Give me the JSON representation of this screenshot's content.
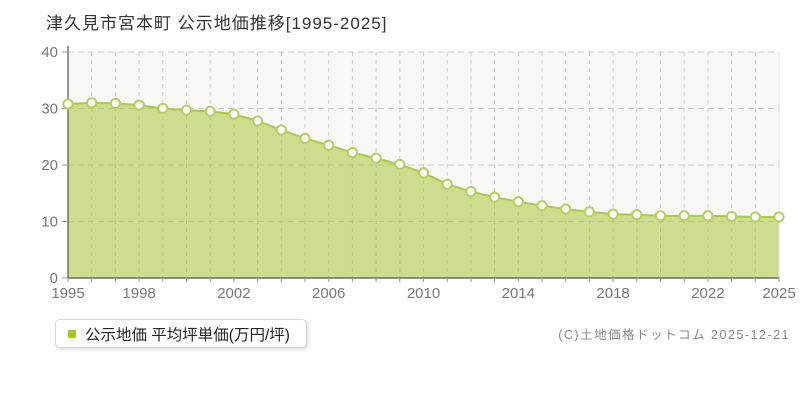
{
  "title": "津久見市宮本町 公示地価推移[1995-2025]",
  "legend": {
    "label": "公示地価 平均坪単価(万円/坪)",
    "marker_color": "#a3c71d"
  },
  "copyright": "(C)土地価格ドットコム 2025-12-21",
  "chart_data": {
    "type": "area",
    "title": "津久見市宮本町 公示地価推移[1995-2025]",
    "xlabel": "",
    "ylabel": "公示地価 平均坪単価(万円/坪)",
    "x": [
      1995,
      1996,
      1997,
      1998,
      1999,
      2000,
      2001,
      2002,
      2003,
      2004,
      2005,
      2006,
      2007,
      2008,
      2009,
      2010,
      2011,
      2012,
      2013,
      2014,
      2015,
      2016,
      2017,
      2018,
      2019,
      2020,
      2021,
      2022,
      2023,
      2024,
      2025
    ],
    "series": [
      {
        "name": "公示地価 平均坪単価(万円/坪)",
        "values": [
          30.8,
          31.0,
          30.9,
          30.6,
          30.0,
          29.7,
          29.5,
          29.0,
          27.8,
          26.2,
          24.7,
          23.5,
          22.2,
          21.2,
          20.1,
          18.6,
          16.6,
          15.3,
          14.3,
          13.5,
          12.8,
          12.2,
          11.7,
          11.3,
          11.2,
          11.0,
          11.0,
          11.0,
          10.9,
          10.8,
          10.8
        ]
      }
    ],
    "ylim": [
      0,
      40
    ],
    "yticks": [
      0,
      10,
      20,
      30,
      40
    ],
    "xticks": [
      1995,
      1998,
      2002,
      2006,
      2010,
      2014,
      2018,
      2022,
      2025
    ],
    "grid": true,
    "legend_position": "bottom-left",
    "colors": {
      "area_fill": "rgba(164,196,48,0.52)",
      "line": "#a9cb41",
      "marker_fill": "#ffffff",
      "marker_stroke": "#b4d15e",
      "grid": "#cccccc",
      "axis": "#555555",
      "tick": "#999999",
      "tick_label": "#787878",
      "plot_bg": "#f8f8f7",
      "plot_right_border": "#e2e2e0"
    }
  }
}
